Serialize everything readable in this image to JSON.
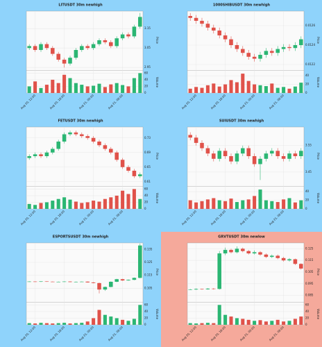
{
  "chart_data": [
    {
      "type": "candlestick",
      "title": "LITUSDT 30m newhigh",
      "background": "#8fd3fb",
      "up_color": "#2bb673",
      "down_color": "#e0524a",
      "y_label": "Price",
      "volume_label": "Volume",
      "open": [
        3.05,
        3.06,
        3.04,
        3.07,
        3.05,
        3.02,
        2.99,
        2.97,
        3.0,
        3.04,
        3.06,
        3.05,
        3.07,
        3.09,
        3.08,
        3.06,
        3.1,
        3.12,
        3.11,
        3.16
      ],
      "high": [
        3.07,
        3.07,
        3.08,
        3.08,
        3.06,
        3.03,
        3.0,
        3.01,
        3.05,
        3.07,
        3.07,
        3.08,
        3.1,
        3.1,
        3.09,
        3.11,
        3.13,
        3.13,
        3.17,
        3.23
      ],
      "low": [
        3.04,
        3.03,
        3.03,
        3.04,
        3.01,
        2.98,
        2.95,
        2.96,
        2.99,
        3.03,
        3.04,
        3.04,
        3.06,
        3.07,
        3.05,
        3.05,
        3.09,
        3.1,
        3.1,
        3.15
      ],
      "close": [
        3.06,
        3.04,
        3.07,
        3.05,
        3.02,
        2.99,
        2.97,
        3.0,
        3.04,
        3.06,
        3.05,
        3.07,
        3.09,
        3.08,
        3.06,
        3.1,
        3.12,
        3.11,
        3.16,
        3.21
      ],
      "volume": [
        20,
        35,
        15,
        25,
        40,
        30,
        55,
        45,
        30,
        25,
        20,
        22,
        28,
        18,
        26,
        30,
        24,
        20,
        45,
        60
      ],
      "ylim": [
        2.94,
        3.24
      ],
      "yticks": [
        2.95,
        3.05,
        3.15
      ],
      "vlim": [
        0,
        65
      ],
      "vticks": [
        0,
        20,
        40,
        60
      ],
      "xticks": [
        {
          "value": 1,
          "label": "Aug 20, 12:00"
        },
        {
          "value": 6,
          "label": "Aug 20, 18:00"
        },
        {
          "value": 11,
          "label": "Aug 21, 00:00"
        },
        {
          "value": 16,
          "label": "Aug 21, 06:00"
        }
      ],
      "grid": true
    },
    {
      "type": "candlestick",
      "title": "1000SHIBUSDT 30m newhigh",
      "background": "#8fd3fb",
      "up_color": "#2bb673",
      "down_color": "#e0524a",
      "y_label": "Price",
      "volume_label": "Volume",
      "open": [
        0.0127,
        0.01268,
        0.01265,
        0.01262,
        0.01258,
        0.01255,
        0.0125,
        0.01246,
        0.0124,
        0.01236,
        0.01232,
        0.01228,
        0.01226,
        0.0123,
        0.01234,
        0.01232,
        0.01236,
        0.01238,
        0.01237,
        0.0124
      ],
      "high": [
        0.01273,
        0.01271,
        0.01268,
        0.01265,
        0.01261,
        0.01258,
        0.01253,
        0.01249,
        0.01243,
        0.01239,
        0.01235,
        0.01231,
        0.01233,
        0.01237,
        0.01237,
        0.01239,
        0.01241,
        0.01241,
        0.01243,
        0.01249
      ],
      "low": [
        0.01265,
        0.01262,
        0.01259,
        0.01255,
        0.01252,
        0.01247,
        0.01243,
        0.01237,
        0.01233,
        0.01229,
        0.01225,
        0.01223,
        0.01223,
        0.01227,
        0.01229,
        0.01229,
        0.01233,
        0.01234,
        0.01234,
        0.01237
      ],
      "close": [
        0.01268,
        0.01265,
        0.01262,
        0.01258,
        0.01255,
        0.0125,
        0.01246,
        0.0124,
        0.01236,
        0.01232,
        0.01228,
        0.01226,
        0.0123,
        0.01234,
        0.01232,
        0.01236,
        0.01238,
        0.01237,
        0.0124,
        0.01246
      ],
      "volume": [
        10,
        14,
        12,
        18,
        22,
        15,
        20,
        30,
        25,
        45,
        28,
        20,
        18,
        16,
        22,
        12,
        14,
        10,
        15,
        24
      ],
      "ylim": [
        0.01215,
        0.01275
      ],
      "yticks": [
        0.0122,
        0.0124,
        0.0126
      ],
      "vlim": [
        0,
        50
      ],
      "vticks": [
        0,
        20,
        40
      ],
      "xticks": [
        {
          "value": 1,
          "label": "Aug 20, 12:00"
        },
        {
          "value": 6,
          "label": "Aug 20, 18:00"
        },
        {
          "value": 11,
          "label": "Aug 21, 00:00"
        },
        {
          "value": 16,
          "label": "Aug 21, 06:00"
        }
      ],
      "grid": true
    },
    {
      "type": "candlestick",
      "title": "FETUSDT 30m newhigh",
      "background": "#8fd3fb",
      "up_color": "#2bb673",
      "down_color": "#e0524a",
      "y_label": "Price",
      "volume_label": "Volume",
      "open": [
        0.675,
        0.68,
        0.685,
        0.68,
        0.69,
        0.7,
        0.72,
        0.74,
        0.745,
        0.74,
        0.735,
        0.73,
        0.72,
        0.71,
        0.7,
        0.69,
        0.67,
        0.65,
        0.64,
        0.625
      ],
      "high": [
        0.685,
        0.69,
        0.69,
        0.695,
        0.705,
        0.725,
        0.745,
        0.75,
        0.75,
        0.745,
        0.74,
        0.735,
        0.725,
        0.715,
        0.705,
        0.695,
        0.675,
        0.655,
        0.645,
        0.635
      ],
      "low": [
        0.67,
        0.675,
        0.675,
        0.675,
        0.685,
        0.695,
        0.715,
        0.735,
        0.735,
        0.73,
        0.725,
        0.715,
        0.705,
        0.695,
        0.685,
        0.665,
        0.645,
        0.635,
        0.62,
        0.62
      ],
      "close": [
        0.68,
        0.685,
        0.68,
        0.69,
        0.7,
        0.72,
        0.74,
        0.745,
        0.74,
        0.735,
        0.73,
        0.72,
        0.71,
        0.7,
        0.69,
        0.67,
        0.65,
        0.64,
        0.625,
        0.63
      ],
      "volume": [
        15,
        12,
        18,
        20,
        25,
        30,
        35,
        28,
        22,
        18,
        20,
        25,
        22,
        30,
        35,
        40,
        55,
        45,
        60,
        30
      ],
      "ylim": [
        0.6,
        0.76
      ],
      "yticks": [
        0.61,
        0.65,
        0.69,
        0.73
      ],
      "vlim": [
        0,
        65
      ],
      "vticks": [
        0,
        20,
        40,
        60
      ],
      "xticks": [
        {
          "value": 1,
          "label": "Aug 20, 12:00"
        },
        {
          "value": 6,
          "label": "Aug 20, 18:00"
        },
        {
          "value": 11,
          "label": "Aug 21, 00:00"
        },
        {
          "value": 16,
          "label": "Aug 21, 06:00"
        }
      ],
      "grid": true
    },
    {
      "type": "candlestick",
      "title": "SUIUSDT 30m newhigh",
      "background": "#8fd3fb",
      "up_color": "#2bb673",
      "down_color": "#e0524a",
      "y_label": "Price",
      "volume_label": "Volume",
      "open": [
        3.59,
        3.58,
        3.56,
        3.54,
        3.52,
        3.5,
        3.53,
        3.51,
        3.49,
        3.52,
        3.54,
        3.51,
        3.48,
        3.5,
        3.52,
        3.53,
        3.51,
        3.5,
        3.52,
        3.51
      ],
      "high": [
        3.6,
        3.59,
        3.57,
        3.55,
        3.53,
        3.54,
        3.54,
        3.52,
        3.53,
        3.55,
        3.55,
        3.52,
        3.51,
        3.53,
        3.54,
        3.54,
        3.52,
        3.53,
        3.53,
        3.54
      ],
      "low": [
        3.57,
        3.55,
        3.53,
        3.51,
        3.49,
        3.49,
        3.5,
        3.48,
        3.48,
        3.51,
        3.5,
        3.47,
        3.42,
        3.49,
        3.51,
        3.5,
        3.49,
        3.49,
        3.5,
        3.5
      ],
      "close": [
        3.58,
        3.56,
        3.54,
        3.52,
        3.5,
        3.53,
        3.51,
        3.49,
        3.52,
        3.54,
        3.51,
        3.48,
        3.5,
        3.52,
        3.53,
        3.51,
        3.5,
        3.52,
        3.51,
        3.53
      ],
      "volume": [
        20,
        15,
        18,
        22,
        25,
        20,
        18,
        24,
        16,
        20,
        22,
        30,
        45,
        20,
        18,
        16,
        22,
        25,
        15,
        20
      ],
      "ylim": [
        3.4,
        3.62
      ],
      "yticks": [
        3.45,
        3.55
      ],
      "vlim": [
        0,
        50
      ],
      "vticks": [
        0,
        20,
        40
      ],
      "xticks": [
        {
          "value": 1,
          "label": "Aug 20, 12:00"
        },
        {
          "value": 6,
          "label": "Aug 20, 18:00"
        },
        {
          "value": 11,
          "label": "Aug 21, 00:00"
        },
        {
          "value": 16,
          "label": "Aug 21, 06:00"
        }
      ],
      "grid": true
    },
    {
      "type": "candlestick",
      "title": "ESPORTSUSDT 30m newhigh",
      "background": "#8fd3fb",
      "up_color": "#2bb673",
      "down_color": "#e0524a",
      "y_label": "Price",
      "volume_label": "Volume",
      "open": [
        0.11,
        0.1102,
        0.11,
        0.1103,
        0.1101,
        0.1099,
        0.11,
        0.1102,
        0.1098,
        0.11,
        0.1101,
        0.1095,
        0.109,
        0.104,
        0.106,
        0.11,
        0.112,
        0.111,
        0.1115,
        0.113
      ],
      "high": [
        0.1104,
        0.1104,
        0.1105,
        0.1104,
        0.1103,
        0.1102,
        0.1104,
        0.1104,
        0.1102,
        0.1103,
        0.1103,
        0.1098,
        0.1093,
        0.1063,
        0.1103,
        0.1123,
        0.1123,
        0.1118,
        0.1133,
        0.1395
      ],
      "low": [
        0.1098,
        0.1098,
        0.1098,
        0.1099,
        0.1097,
        0.1097,
        0.1098,
        0.1096,
        0.1096,
        0.1098,
        0.1093,
        0.1088,
        0.101,
        0.103,
        0.1057,
        0.1097,
        0.1107,
        0.1108,
        0.1112,
        0.1127
      ],
      "close": [
        0.1102,
        0.11,
        0.1103,
        0.1101,
        0.1099,
        0.11,
        0.1102,
        0.1098,
        0.11,
        0.1101,
        0.1095,
        0.109,
        0.104,
        0.106,
        0.11,
        0.112,
        0.111,
        0.1115,
        0.113,
        0.138
      ],
      "volume": [
        5,
        4,
        6,
        5,
        4,
        5,
        6,
        4,
        5,
        6,
        10,
        20,
        45,
        30,
        25,
        20,
        15,
        12,
        18,
        60
      ],
      "ylim": [
        0.095,
        0.14
      ],
      "yticks": [
        0.105,
        0.115,
        0.125,
        0.135
      ],
      "vlim": [
        0,
        65
      ],
      "vticks": [
        0,
        20,
        40,
        60
      ],
      "xticks": [
        {
          "value": 1,
          "label": "Aug 20, 12:00"
        },
        {
          "value": 6,
          "label": "Aug 20, 18:00"
        },
        {
          "value": 11,
          "label": "Aug 21, 00:00"
        },
        {
          "value": 16,
          "label": "Aug 21, 06:00"
        }
      ],
      "grid": true
    },
    {
      "type": "candlestick",
      "title": "GRVTUSDT 30m newlow",
      "background": "#f5a99b",
      "up_color": "#2bb673",
      "down_color": "#e0524a",
      "y_label": "Price",
      "volume_label": "Volume",
      "open": [
        0.0898,
        0.09,
        0.0905,
        0.0902,
        0.0908,
        0.0905,
        0.121,
        0.124,
        0.122,
        0.125,
        0.123,
        0.121,
        0.122,
        0.12,
        0.118,
        0.119,
        0.117,
        0.115,
        0.116,
        0.112
      ],
      "high": [
        0.0905,
        0.091,
        0.0908,
        0.0912,
        0.0912,
        0.123,
        0.126,
        0.125,
        0.127,
        0.126,
        0.124,
        0.1235,
        0.123,
        0.121,
        0.12,
        0.12,
        0.118,
        0.117,
        0.1165,
        0.1125
      ],
      "low": [
        0.0895,
        0.0897,
        0.0898,
        0.0899,
        0.09,
        0.09,
        0.1195,
        0.121,
        0.121,
        0.122,
        0.12,
        0.12,
        0.119,
        0.117,
        0.117,
        0.116,
        0.114,
        0.114,
        0.111,
        0.107
      ],
      "close": [
        0.09,
        0.0905,
        0.0902,
        0.0908,
        0.0905,
        0.121,
        0.124,
        0.122,
        0.125,
        0.123,
        0.121,
        0.122,
        0.12,
        0.118,
        0.119,
        0.117,
        0.115,
        0.116,
        0.112,
        0.108
      ],
      "volume": [
        5,
        4,
        5,
        6,
        5,
        60,
        30,
        25,
        20,
        18,
        15,
        12,
        14,
        10,
        12,
        15,
        10,
        12,
        18,
        25
      ],
      "ylim": [
        0.08,
        0.13
      ],
      "yticks": [
        0.085,
        0.095,
        0.105,
        0.115,
        0.125
      ],
      "vlim": [
        0,
        65
      ],
      "vticks": [
        0,
        20,
        40,
        60
      ],
      "xticks": [
        {
          "value": 1,
          "label": "Aug 20, 12:00"
        },
        {
          "value": 6,
          "label": "Aug 20, 18:00"
        },
        {
          "value": 11,
          "label": "Aug 21, 00:00"
        },
        {
          "value": 16,
          "label": "Aug 21, 06:00"
        }
      ],
      "grid": true
    }
  ]
}
